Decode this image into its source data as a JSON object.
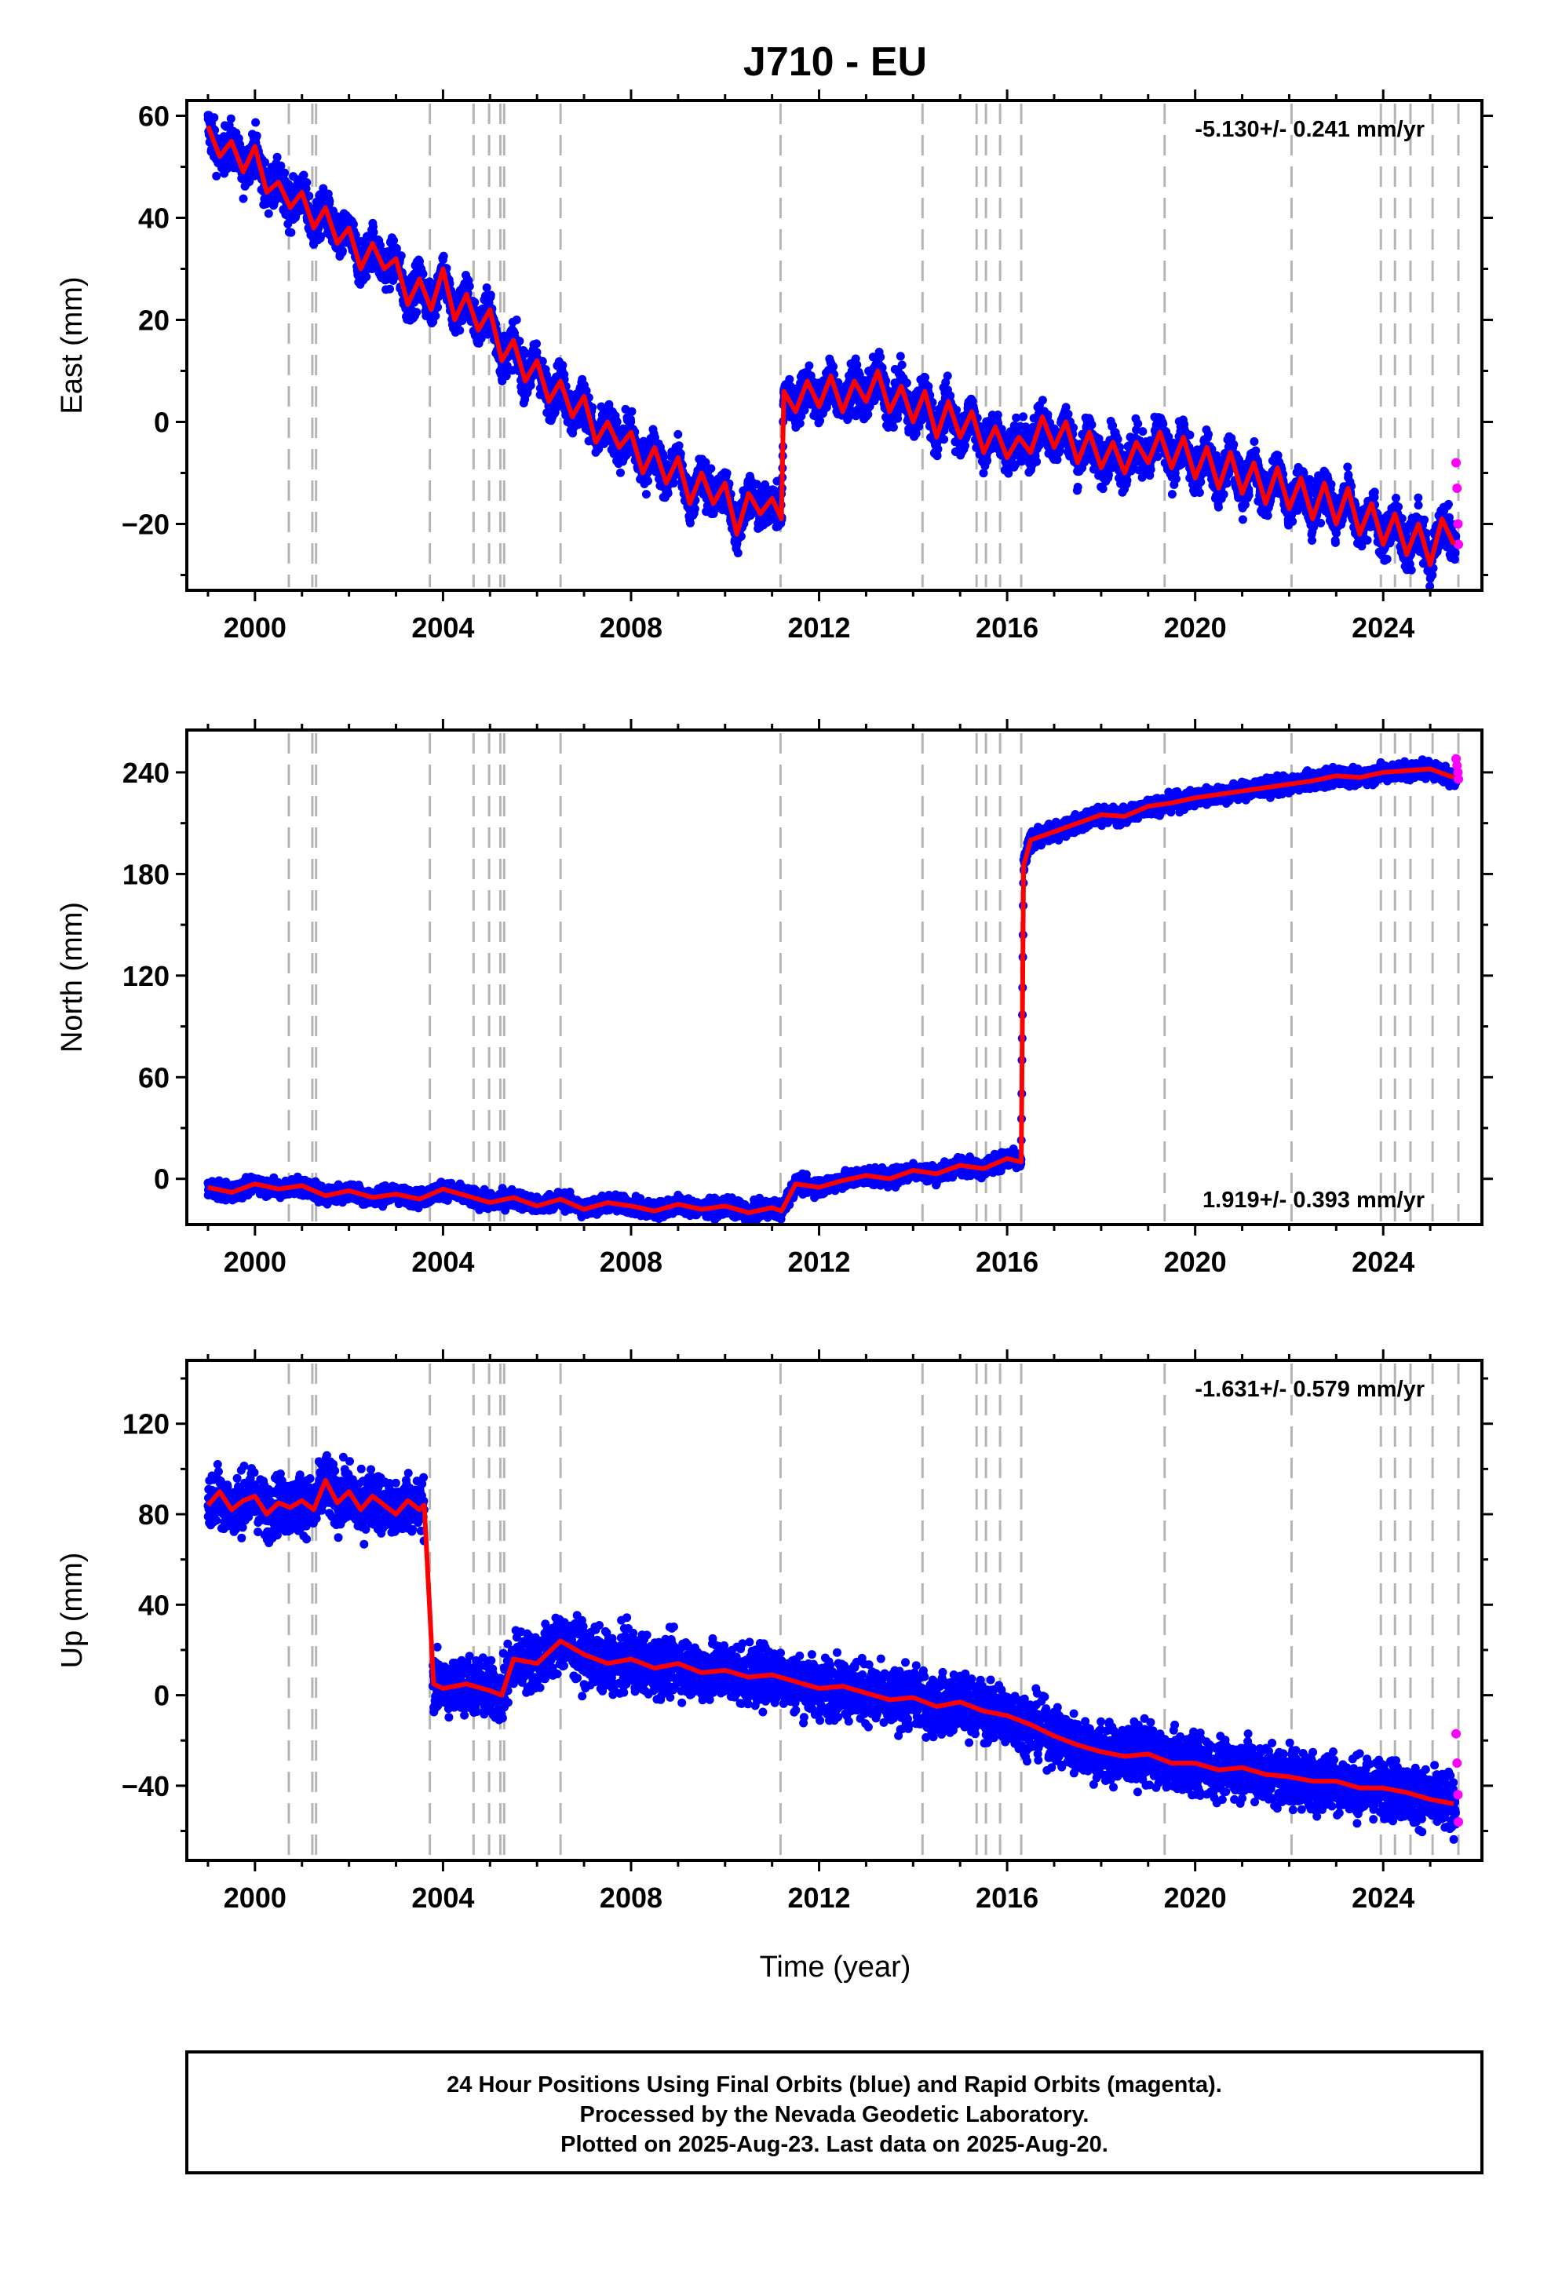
{
  "title": "J710 - EU",
  "xlabel": "Time (year)",
  "x_ticks": [
    2000,
    2004,
    2008,
    2012,
    2016,
    2020,
    2024
  ],
  "colors": {
    "final_orbits": "#0000ff",
    "rapid_orbits": "#ff00ff",
    "model": "#ff0000",
    "event_lines": "#b4b4b4"
  },
  "chart_data": [
    {
      "type": "scatter",
      "name": "east",
      "ylabel": "East (mm)",
      "rate": "-5.130+/- 0.241 mm/yr",
      "xlim": [
        1998.55,
        2026.1
      ],
      "ylim": [
        -33,
        63
      ],
      "y_ticks": [
        -20,
        0,
        20,
        40,
        60
      ],
      "grid": false,
      "series": [
        {
          "name": "final",
          "x": [
            1999.0,
            1999.25,
            1999.5,
            1999.75,
            2000.0,
            2000.25,
            2000.5,
            2000.75,
            2001.0,
            2001.25,
            2001.5,
            2001.75,
            2002.0,
            2002.25,
            2002.5,
            2002.75,
            2003.0,
            2003.25,
            2003.5,
            2003.75,
            2004.0,
            2004.25,
            2004.5,
            2004.75,
            2005.0,
            2005.25,
            2005.5,
            2005.75,
            2006.0,
            2006.25,
            2006.5,
            2006.75,
            2007.0,
            2007.25,
            2007.5,
            2007.75,
            2008.0,
            2008.25,
            2008.5,
            2008.75,
            2009.0,
            2009.25,
            2009.5,
            2009.75,
            2010.0,
            2010.25,
            2010.5,
            2010.75,
            2011.0,
            2011.2,
            2011.25,
            2011.5,
            2011.75,
            2012.0,
            2012.25,
            2012.5,
            2012.75,
            2013.0,
            2013.25,
            2013.5,
            2013.75,
            2014.0,
            2014.25,
            2014.5,
            2014.75,
            2015.0,
            2015.25,
            2015.5,
            2015.75,
            2016.0,
            2016.25,
            2016.5,
            2016.75,
            2017.0,
            2017.25,
            2017.5,
            2017.75,
            2018.0,
            2018.25,
            2018.5,
            2018.75,
            2019.0,
            2019.25,
            2019.5,
            2019.75,
            2020.0,
            2020.25,
            2020.5,
            2020.75,
            2021.0,
            2021.25,
            2021.5,
            2021.75,
            2022.0,
            2022.25,
            2022.5,
            2022.75,
            2023.0,
            2023.25,
            2023.5,
            2023.75,
            2024.0,
            2024.25,
            2024.5,
            2024.75,
            2025.0,
            2025.25,
            2025.5
          ],
          "y": [
            58,
            52,
            55,
            49,
            54,
            45,
            47,
            42,
            45,
            38,
            42,
            35,
            38,
            30,
            35,
            30,
            32,
            23,
            28,
            22,
            30,
            20,
            25,
            18,
            22,
            12,
            16,
            8,
            12,
            4,
            8,
            1,
            5,
            -4,
            0,
            -5,
            -2,
            -10,
            -5,
            -12,
            -7,
            -16,
            -10,
            -16,
            -12,
            -22,
            -14,
            -18,
            -15,
            -19,
            6,
            2,
            8,
            3,
            9,
            2,
            8,
            4,
            10,
            2,
            7,
            0,
            6,
            -3,
            4,
            -3,
            2,
            -6,
            -1,
            -7,
            -3,
            -6,
            1,
            -5,
            0,
            -8,
            -2,
            -9,
            -4,
            -10,
            -4,
            -8,
            -2,
            -9,
            -3,
            -11,
            -5,
            -13,
            -6,
            -14,
            -8,
            -16,
            -9,
            -17,
            -11,
            -19,
            -12,
            -20,
            -13,
            -22,
            -16,
            -24,
            -18,
            -26,
            -20,
            -28,
            -19,
            -24
          ]
        },
        {
          "name": "rapid",
          "x": [
            2025.55,
            2025.57,
            2025.59,
            2025.6
          ],
          "y": [
            -8,
            -13,
            -20,
            -24
          ]
        }
      ],
      "events": [
        2000.72,
        2001.22,
        2001.3,
        2003.72,
        2004.65,
        2004.98,
        2005.22,
        2005.3,
        2006.5,
        2011.18,
        2014.2,
        2015.35,
        2015.55,
        2015.85,
        2016.3,
        2019.35,
        2022.05,
        2023.95,
        2024.25,
        2024.58,
        2025.05,
        2025.6
      ]
    },
    {
      "type": "scatter",
      "name": "north",
      "ylabel": "North (mm)",
      "rate": "1.919+/- 0.393 mm/yr",
      "xlim": [
        1998.55,
        2026.1
      ],
      "ylim": [
        -27,
        265
      ],
      "y_ticks": [
        0,
        60,
        120,
        180,
        240
      ],
      "grid": false,
      "series": [
        {
          "name": "final",
          "x": [
            1999.0,
            1999.5,
            2000.0,
            2000.5,
            2001.0,
            2001.5,
            2002.0,
            2002.5,
            2003.0,
            2003.5,
            2004.0,
            2004.5,
            2005.0,
            2005.5,
            2006.0,
            2006.5,
            2007.0,
            2007.5,
            2008.0,
            2008.5,
            2009.0,
            2009.5,
            2010.0,
            2010.5,
            2011.0,
            2011.2,
            2011.5,
            2012.0,
            2012.5,
            2013.0,
            2013.5,
            2014.0,
            2014.5,
            2015.0,
            2015.5,
            2016.0,
            2016.3,
            2016.35,
            2016.5,
            2017.0,
            2017.5,
            2018.0,
            2018.5,
            2019.0,
            2019.5,
            2020.0,
            2020.5,
            2021.0,
            2021.5,
            2022.0,
            2022.5,
            2023.0,
            2023.5,
            2024.0,
            2024.5,
            2025.0,
            2025.5
          ],
          "y": [
            -5,
            -8,
            -3,
            -6,
            -4,
            -10,
            -7,
            -11,
            -9,
            -12,
            -6,
            -10,
            -14,
            -11,
            -16,
            -12,
            -18,
            -14,
            -16,
            -19,
            -15,
            -18,
            -16,
            -20,
            -17,
            -19,
            -3,
            -5,
            -1,
            2,
            0,
            5,
            3,
            8,
            6,
            12,
            10,
            185,
            200,
            205,
            210,
            215,
            214,
            220,
            222,
            225,
            227,
            229,
            231,
            233,
            235,
            238,
            237,
            240,
            241,
            242,
            237
          ]
        },
        {
          "name": "rapid",
          "x": [
            2025.55,
            2025.57,
            2025.59,
            2025.6
          ],
          "y": [
            248,
            244,
            240,
            236
          ]
        }
      ],
      "events": [
        2000.72,
        2001.22,
        2001.3,
        2003.72,
        2004.65,
        2004.98,
        2005.22,
        2005.3,
        2006.5,
        2011.18,
        2014.2,
        2015.35,
        2015.55,
        2015.85,
        2016.3,
        2019.35,
        2022.05,
        2023.95,
        2024.25,
        2024.58,
        2025.05,
        2025.6
      ]
    },
    {
      "type": "scatter",
      "name": "up",
      "ylabel": "Up (mm)",
      "rate": "-1.631+/- 0.579 mm/yr",
      "xlim": [
        1998.55,
        2026.1
      ],
      "ylim": [
        -73,
        148
      ],
      "y_ticks": [
        -40,
        0,
        40,
        80,
        120
      ],
      "grid": false,
      "series": [
        {
          "name": "final",
          "x": [
            1999.0,
            1999.25,
            1999.5,
            1999.75,
            2000.0,
            2000.25,
            2000.5,
            2000.75,
            2001.0,
            2001.25,
            2001.5,
            2001.75,
            2002.0,
            2002.25,
            2002.5,
            2002.75,
            2003.0,
            2003.25,
            2003.5,
            2003.6,
            2003.8,
            2004.0,
            2004.5,
            2005.0,
            2005.25,
            2005.5,
            2006.0,
            2006.5,
            2007.0,
            2007.5,
            2008.0,
            2008.5,
            2009.0,
            2009.5,
            2010.0,
            2010.5,
            2011.0,
            2011.5,
            2012.0,
            2012.5,
            2013.0,
            2013.5,
            2014.0,
            2014.5,
            2015.0,
            2015.5,
            2016.0,
            2016.5,
            2017.0,
            2017.5,
            2018.0,
            2018.5,
            2019.0,
            2019.5,
            2020.0,
            2020.5,
            2021.0,
            2021.5,
            2022.0,
            2022.5,
            2023.0,
            2023.5,
            2024.0,
            2024.5,
            2025.0,
            2025.5
          ],
          "y": [
            84,
            90,
            82,
            86,
            88,
            80,
            85,
            83,
            86,
            82,
            95,
            85,
            90,
            82,
            88,
            84,
            80,
            86,
            82,
            84,
            5,
            3,
            5,
            2,
            0,
            16,
            14,
            24,
            18,
            14,
            16,
            12,
            14,
            10,
            11,
            8,
            9,
            6,
            3,
            4,
            1,
            -2,
            -1,
            -5,
            -3,
            -7,
            -9,
            -13,
            -18,
            -22,
            -25,
            -27,
            -26,
            -30,
            -30,
            -33,
            -32,
            -35,
            -36,
            -38,
            -38,
            -41,
            -41,
            -43,
            -46,
            -48
          ]
        },
        {
          "name": "rapid",
          "x": [
            2025.55,
            2025.57,
            2025.59,
            2025.6
          ],
          "y": [
            -17,
            -30,
            -44,
            -56
          ]
        }
      ],
      "events": [
        2000.72,
        2001.22,
        2001.3,
        2003.72,
        2004.65,
        2004.98,
        2005.22,
        2005.3,
        2006.5,
        2011.18,
        2014.2,
        2015.35,
        2015.55,
        2015.85,
        2016.3,
        2019.35,
        2022.05,
        2023.95,
        2024.25,
        2024.58,
        2025.05,
        2025.6
      ]
    }
  ],
  "footer": {
    "line1": "24 Hour Positions Using Final Orbits (blue) and Rapid Orbits (magenta).",
    "line2": "Processed by the Nevada Geodetic Laboratory.",
    "line3": "Plotted on 2025-Aug-23. Last data on 2025-Aug-20."
  }
}
